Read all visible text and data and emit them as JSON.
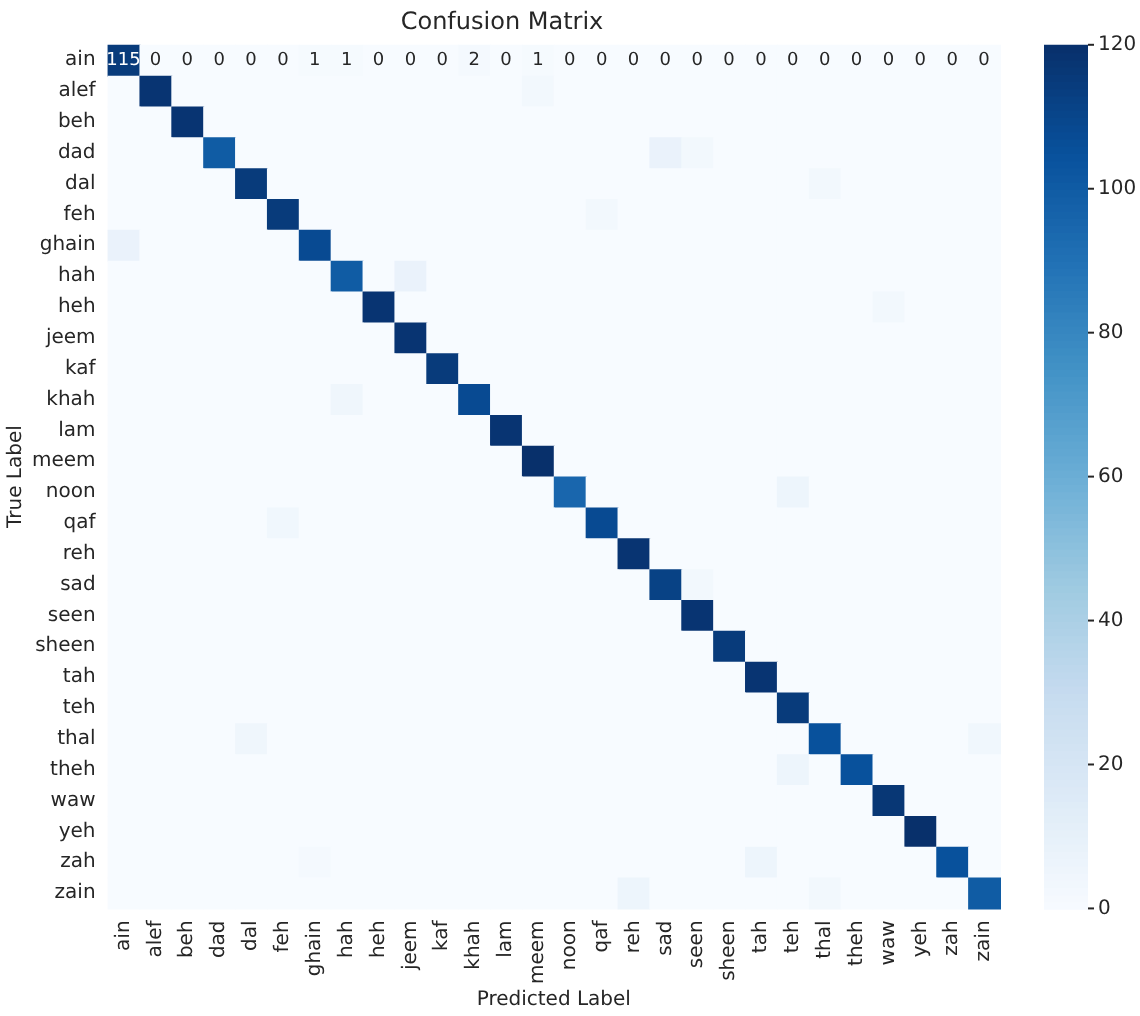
{
  "chart_data": {
    "type": "heatmap",
    "title": "Confusion Matrix",
    "xlabel": "Predicted Label",
    "ylabel": "True Label",
    "categories": [
      "ain",
      "alef",
      "beh",
      "dad",
      "dal",
      "feh",
      "ghain",
      "hah",
      "heh",
      "jeem",
      "kaf",
      "khah",
      "lam",
      "meem",
      "noon",
      "qaf",
      "reh",
      "sad",
      "seen",
      "sheen",
      "tah",
      "teh",
      "thal",
      "theh",
      "waw",
      "yeh",
      "zah",
      "zain"
    ],
    "y_categories": [
      "ain",
      "alef",
      "beh",
      "dad",
      "dal",
      "feh",
      "ghain",
      "hah",
      "heh",
      "jeem",
      "kaf",
      "khah",
      "lam",
      "meem",
      "noon",
      "qaf",
      "reh",
      "sad",
      "seen",
      "sheen",
      "tah",
      "teh",
      "thal",
      "theh",
      "waw",
      "yeh",
      "zah",
      "zain"
    ],
    "cells": [
      [
        115,
        0,
        0,
        0,
        0,
        0,
        1,
        1,
        0,
        0,
        0,
        2,
        0,
        1,
        0,
        0,
        0,
        0,
        0,
        0,
        0,
        0,
        0,
        0,
        0,
        0,
        0,
        0
      ],
      [
        0,
        118,
        0,
        0,
        0,
        0,
        0,
        0,
        0,
        0,
        0,
        0,
        0,
        3,
        0,
        0,
        0,
        0,
        0,
        0,
        0,
        0,
        0,
        0,
        0,
        0,
        0,
        0
      ],
      [
        0,
        0,
        118,
        0,
        0,
        0,
        0,
        0,
        0,
        0,
        0,
        0,
        0,
        0,
        0,
        0,
        0,
        0,
        0,
        0,
        0,
        0,
        0,
        0,
        0,
        0,
        0,
        0
      ],
      [
        0,
        0,
        0,
        100,
        0,
        0,
        0,
        0,
        0,
        0,
        0,
        0,
        0,
        0,
        0,
        0,
        0,
        8,
        3,
        0,
        0,
        0,
        0,
        0,
        0,
        0,
        0,
        0
      ],
      [
        0,
        0,
        0,
        0,
        115,
        0,
        0,
        0,
        0,
        0,
        0,
        0,
        0,
        0,
        0,
        0,
        0,
        0,
        0,
        0,
        0,
        0,
        3,
        0,
        0,
        0,
        0,
        0
      ],
      [
        0,
        0,
        0,
        0,
        0,
        115,
        0,
        0,
        0,
        0,
        0,
        0,
        0,
        0,
        0,
        3,
        0,
        0,
        0,
        0,
        0,
        0,
        0,
        0,
        0,
        0,
        0,
        0
      ],
      [
        8,
        0,
        0,
        0,
        0,
        0,
        108,
        0,
        0,
        0,
        0,
        0,
        0,
        0,
        0,
        0,
        0,
        0,
        0,
        0,
        0,
        0,
        0,
        0,
        0,
        0,
        0,
        0
      ],
      [
        0,
        0,
        0,
        0,
        0,
        0,
        0,
        100,
        0,
        8,
        0,
        0,
        0,
        0,
        0,
        0,
        0,
        0,
        0,
        0,
        0,
        0,
        0,
        0,
        0,
        0,
        0,
        0
      ],
      [
        0,
        0,
        0,
        0,
        0,
        0,
        0,
        0,
        118,
        0,
        0,
        0,
        0,
        0,
        0,
        0,
        0,
        0,
        0,
        0,
        0,
        0,
        0,
        0,
        3,
        0,
        0,
        0
      ],
      [
        0,
        0,
        0,
        0,
        0,
        0,
        0,
        0,
        0,
        118,
        0,
        0,
        0,
        0,
        0,
        0,
        0,
        0,
        0,
        0,
        0,
        0,
        0,
        0,
        0,
        0,
        0,
        0
      ],
      [
        0,
        0,
        0,
        0,
        0,
        0,
        0,
        0,
        0,
        0,
        115,
        0,
        0,
        0,
        0,
        0,
        0,
        0,
        0,
        0,
        0,
        0,
        0,
        0,
        0,
        0,
        0,
        0
      ],
      [
        0,
        0,
        0,
        0,
        0,
        0,
        0,
        5,
        0,
        0,
        0,
        108,
        0,
        0,
        0,
        0,
        0,
        0,
        0,
        0,
        0,
        0,
        0,
        0,
        0,
        0,
        0,
        0
      ],
      [
        0,
        0,
        0,
        0,
        0,
        0,
        0,
        0,
        0,
        0,
        0,
        0,
        118,
        0,
        0,
        0,
        0,
        0,
        0,
        0,
        0,
        0,
        0,
        0,
        0,
        0,
        0,
        0
      ],
      [
        0,
        0,
        0,
        0,
        0,
        0,
        0,
        0,
        0,
        0,
        0,
        0,
        0,
        120,
        0,
        0,
        0,
        0,
        0,
        0,
        0,
        0,
        0,
        0,
        0,
        0,
        0,
        0
      ],
      [
        0,
        0,
        0,
        0,
        0,
        0,
        0,
        0,
        0,
        0,
        0,
        0,
        0,
        0,
        95,
        0,
        0,
        0,
        0,
        0,
        0,
        6,
        0,
        0,
        0,
        0,
        0,
        0
      ],
      [
        0,
        0,
        0,
        0,
        0,
        4,
        0,
        0,
        0,
        0,
        0,
        0,
        0,
        0,
        0,
        108,
        0,
        0,
        0,
        0,
        0,
        0,
        0,
        0,
        0,
        0,
        0,
        0
      ],
      [
        0,
        0,
        0,
        0,
        0,
        0,
        0,
        0,
        0,
        0,
        0,
        0,
        0,
        0,
        0,
        0,
        118,
        0,
        0,
        0,
        0,
        0,
        0,
        0,
        0,
        0,
        0,
        0
      ],
      [
        0,
        0,
        0,
        0,
        0,
        0,
        0,
        0,
        0,
        0,
        0,
        0,
        0,
        0,
        0,
        0,
        0,
        112,
        3,
        0,
        0,
        0,
        0,
        0,
        0,
        0,
        0,
        0
      ],
      [
        0,
        0,
        0,
        0,
        0,
        0,
        0,
        0,
        0,
        0,
        0,
        0,
        0,
        0,
        0,
        0,
        0,
        0,
        118,
        0,
        0,
        0,
        0,
        0,
        0,
        0,
        0,
        0
      ],
      [
        0,
        0,
        0,
        0,
        0,
        0,
        0,
        0,
        0,
        0,
        0,
        0,
        0,
        0,
        0,
        0,
        0,
        0,
        0,
        115,
        0,
        0,
        0,
        0,
        0,
        0,
        0,
        0
      ],
      [
        0,
        0,
        0,
        0,
        0,
        0,
        0,
        0,
        0,
        0,
        0,
        0,
        0,
        0,
        0,
        0,
        0,
        0,
        0,
        0,
        118,
        0,
        0,
        0,
        0,
        0,
        0,
        0
      ],
      [
        0,
        0,
        0,
        0,
        0,
        0,
        0,
        0,
        0,
        0,
        0,
        0,
        0,
        0,
        0,
        0,
        0,
        0,
        0,
        0,
        0,
        115,
        0,
        0,
        0,
        0,
        0,
        0
      ],
      [
        0,
        0,
        0,
        0,
        5,
        0,
        0,
        0,
        0,
        0,
        0,
        0,
        0,
        0,
        0,
        0,
        0,
        0,
        0,
        0,
        0,
        0,
        105,
        0,
        0,
        0,
        0,
        4
      ],
      [
        0,
        0,
        0,
        0,
        0,
        0,
        0,
        0,
        0,
        0,
        0,
        0,
        0,
        0,
        0,
        0,
        0,
        0,
        0,
        0,
        0,
        6,
        0,
        105,
        0,
        0,
        0,
        0
      ],
      [
        0,
        0,
        0,
        0,
        0,
        0,
        0,
        0,
        0,
        0,
        0,
        0,
        0,
        0,
        0,
        0,
        0,
        0,
        0,
        0,
        0,
        0,
        0,
        0,
        117,
        0,
        0,
        0
      ],
      [
        0,
        0,
        0,
        0,
        0,
        0,
        0,
        0,
        0,
        0,
        0,
        0,
        0,
        0,
        0,
        0,
        0,
        0,
        0,
        0,
        0,
        0,
        0,
        0,
        0,
        120,
        0,
        0
      ],
      [
        0,
        0,
        0,
        0,
        0,
        0,
        2,
        0,
        0,
        0,
        0,
        0,
        0,
        0,
        0,
        0,
        0,
        0,
        0,
        0,
        6,
        0,
        0,
        0,
        0,
        0,
        105,
        0
      ],
      [
        0,
        0,
        0,
        0,
        0,
        0,
        0,
        0,
        0,
        0,
        0,
        0,
        0,
        0,
        0,
        0,
        6,
        0,
        0,
        0,
        0,
        0,
        3,
        0,
        0,
        0,
        0,
        100
      ]
    ],
    "cell_labels": [
      [
        "115",
        "0",
        "0",
        "0",
        "0",
        "0",
        "1",
        "1",
        "0",
        "0",
        "0",
        "2",
        "0",
        "1",
        "0",
        "0",
        "0",
        "0",
        "0",
        "0",
        "0",
        "0",
        "0",
        "0",
        "0",
        "0",
        "0",
        "0"
      ],
      [
        null,
        null,
        null,
        null,
        null,
        null,
        null,
        null,
        null,
        null,
        null,
        null,
        null,
        null,
        null,
        null,
        null,
        null,
        null,
        null,
        null,
        null,
        null,
        null,
        null,
        null,
        null,
        null
      ],
      [
        null,
        null,
        null,
        null,
        null,
        null,
        null,
        null,
        null,
        null,
        null,
        null,
        null,
        null,
        null,
        null,
        null,
        null,
        null,
        null,
        null,
        null,
        null,
        null,
        null,
        null,
        null,
        null
      ],
      [
        null,
        null,
        null,
        null,
        null,
        null,
        null,
        null,
        null,
        null,
        null,
        null,
        null,
        null,
        null,
        null,
        null,
        null,
        null,
        null,
        null,
        null,
        null,
        null,
        null,
        null,
        null,
        null
      ],
      [
        null,
        null,
        null,
        null,
        null,
        null,
        null,
        null,
        null,
        null,
        null,
        null,
        null,
        null,
        null,
        null,
        null,
        null,
        null,
        null,
        null,
        null,
        null,
        null,
        null,
        null,
        null,
        null
      ],
      [
        null,
        null,
        null,
        null,
        null,
        null,
        null,
        null,
        null,
        null,
        null,
        null,
        null,
        null,
        null,
        null,
        null,
        null,
        null,
        null,
        null,
        null,
        null,
        null,
        null,
        null,
        null,
        null
      ],
      [
        null,
        null,
        null,
        null,
        null,
        null,
        null,
        null,
        null,
        null,
        null,
        null,
        null,
        null,
        null,
        null,
        null,
        null,
        null,
        null,
        null,
        null,
        null,
        null,
        null,
        null,
        null,
        null
      ],
      [
        null,
        null,
        null,
        null,
        null,
        null,
        null,
        null,
        null,
        null,
        null,
        null,
        null,
        null,
        null,
        null,
        null,
        null,
        null,
        null,
        null,
        null,
        null,
        null,
        null,
        null,
        null,
        null
      ],
      [
        null,
        null,
        null,
        null,
        null,
        null,
        null,
        null,
        null,
        null,
        null,
        null,
        null,
        null,
        null,
        null,
        null,
        null,
        null,
        null,
        null,
        null,
        null,
        null,
        null,
        null,
        null,
        null
      ],
      [
        null,
        null,
        null,
        null,
        null,
        null,
        null,
        null,
        null,
        null,
        null,
        null,
        null,
        null,
        null,
        null,
        null,
        null,
        null,
        null,
        null,
        null,
        null,
        null,
        null,
        null,
        null,
        null
      ],
      [
        null,
        null,
        null,
        null,
        null,
        null,
        null,
        null,
        null,
        null,
        null,
        null,
        null,
        null,
        null,
        null,
        null,
        null,
        null,
        null,
        null,
        null,
        null,
        null,
        null,
        null,
        null,
        null
      ],
      [
        null,
        null,
        null,
        null,
        null,
        null,
        null,
        null,
        null,
        null,
        null,
        null,
        null,
        null,
        null,
        null,
        null,
        null,
        null,
        null,
        null,
        null,
        null,
        null,
        null,
        null,
        null,
        null
      ],
      [
        null,
        null,
        null,
        null,
        null,
        null,
        null,
        null,
        null,
        null,
        null,
        null,
        null,
        null,
        null,
        null,
        null,
        null,
        null,
        null,
        null,
        null,
        null,
        null,
        null,
        null,
        null,
        null
      ],
      [
        null,
        null,
        null,
        null,
        null,
        null,
        null,
        null,
        null,
        null,
        null,
        null,
        null,
        null,
        null,
        null,
        null,
        null,
        null,
        null,
        null,
        null,
        null,
        null,
        null,
        null,
        null,
        null
      ],
      [
        null,
        null,
        null,
        null,
        null,
        null,
        null,
        null,
        null,
        null,
        null,
        null,
        null,
        null,
        null,
        null,
        null,
        null,
        null,
        null,
        null,
        null,
        null,
        null,
        null,
        null,
        null,
        null
      ],
      [
        null,
        null,
        null,
        null,
        null,
        null,
        null,
        null,
        null,
        null,
        null,
        null,
        null,
        null,
        null,
        null,
        null,
        null,
        null,
        null,
        null,
        null,
        null,
        null,
        null,
        null,
        null,
        null
      ],
      [
        null,
        null,
        null,
        null,
        null,
        null,
        null,
        null,
        null,
        null,
        null,
        null,
        null,
        null,
        null,
        null,
        null,
        null,
        null,
        null,
        null,
        null,
        null,
        null,
        null,
        null,
        null,
        null
      ],
      [
        null,
        null,
        null,
        null,
        null,
        null,
        null,
        null,
        null,
        null,
        null,
        null,
        null,
        null,
        null,
        null,
        null,
        null,
        null,
        null,
        null,
        null,
        null,
        null,
        null,
        null,
        null,
        null
      ],
      [
        null,
        null,
        null,
        null,
        null,
        null,
        null,
        null,
        null,
        null,
        null,
        null,
        null,
        null,
        null,
        null,
        null,
        null,
        null,
        null,
        null,
        null,
        null,
        null,
        null,
        null,
        null,
        null
      ],
      [
        null,
        null,
        null,
        null,
        null,
        null,
        null,
        null,
        null,
        null,
        null,
        null,
        null,
        null,
        null,
        null,
        null,
        null,
        null,
        null,
        null,
        null,
        null,
        null,
        null,
        null,
        null,
        null
      ],
      [
        null,
        null,
        null,
        null,
        null,
        null,
        null,
        null,
        null,
        null,
        null,
        null,
        null,
        null,
        null,
        null,
        null,
        null,
        null,
        null,
        null,
        null,
        null,
        null,
        null,
        null,
        null,
        null
      ],
      [
        null,
        null,
        null,
        null,
        null,
        null,
        null,
        null,
        null,
        null,
        null,
        null,
        null,
        null,
        null,
        null,
        null,
        null,
        null,
        null,
        null,
        null,
        null,
        null,
        null,
        null,
        null,
        null
      ],
      [
        null,
        null,
        null,
        null,
        null,
        null,
        null,
        null,
        null,
        null,
        null,
        null,
        null,
        null,
        null,
        null,
        null,
        null,
        null,
        null,
        null,
        null,
        null,
        null,
        null,
        null,
        null,
        null
      ],
      [
        null,
        null,
        null,
        null,
        null,
        null,
        null,
        null,
        null,
        null,
        null,
        null,
        null,
        null,
        null,
        null,
        null,
        null,
        null,
        null,
        null,
        null,
        null,
        null,
        null,
        null,
        null,
        null
      ],
      [
        null,
        null,
        null,
        null,
        null,
        null,
        null,
        null,
        null,
        null,
        null,
        null,
        null,
        null,
        null,
        null,
        null,
        null,
        null,
        null,
        null,
        null,
        null,
        null,
        null,
        null,
        null,
        null
      ],
      [
        null,
        null,
        null,
        null,
        null,
        null,
        null,
        null,
        null,
        null,
        null,
        null,
        null,
        null,
        null,
        null,
        null,
        null,
        null,
        null,
        null,
        null,
        null,
        null,
        null,
        null,
        null,
        null
      ],
      [
        null,
        null,
        null,
        null,
        null,
        null,
        null,
        null,
        null,
        null,
        null,
        null,
        null,
        null,
        null,
        null,
        null,
        null,
        null,
        null,
        null,
        null,
        null,
        null,
        null,
        null,
        null,
        null
      ],
      [
        null,
        null,
        null,
        null,
        null,
        null,
        null,
        null,
        null,
        null,
        null,
        null,
        null,
        null,
        null,
        null,
        null,
        null,
        null,
        null,
        null,
        null,
        null,
        null,
        null,
        null,
        null,
        null
      ]
    ],
    "clim": [
      0,
      120
    ],
    "cticks": [
      0,
      20,
      40,
      60,
      80,
      100,
      120
    ]
  }
}
